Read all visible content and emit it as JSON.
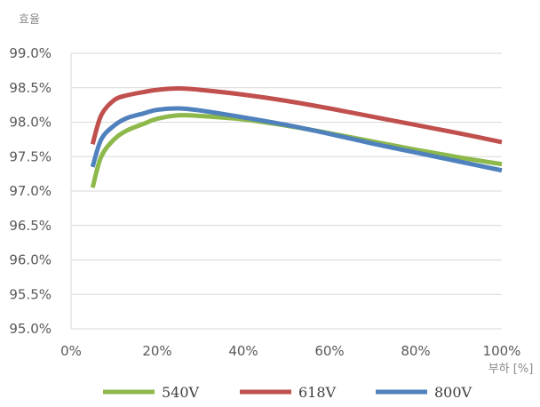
{
  "chart_data": {
    "type": "line",
    "ylabel": "효율",
    "xlabel": "부하 [%]",
    "xlim": [
      0,
      100
    ],
    "ylim": [
      95.0,
      99.0
    ],
    "x_ticks": [
      "0%",
      "20%",
      "40%",
      "60%",
      "80%",
      "100%"
    ],
    "y_ticks": [
      "95.0%",
      "95.5%",
      "96.0%",
      "96.5%",
      "97.0%",
      "97.5%",
      "98.0%",
      "98.5%",
      "99.0%"
    ],
    "grid": "horizontal",
    "legend_position": "bottom",
    "series": [
      {
        "name": "540V",
        "color": "#8db84a",
        "x": [
          5,
          7,
          10,
          13,
          17,
          20,
          25,
          30,
          40,
          50,
          60,
          70,
          80,
          90,
          100
        ],
        "y": [
          97.05,
          97.5,
          97.75,
          97.88,
          97.98,
          98.05,
          98.1,
          98.09,
          98.04,
          97.95,
          97.84,
          97.72,
          97.6,
          97.49,
          97.39
        ]
      },
      {
        "name": "618V",
        "color": "#c0504d",
        "x": [
          5,
          7,
          10,
          13,
          17,
          20,
          25,
          30,
          40,
          50,
          60,
          70,
          80,
          90,
          100
        ],
        "y": [
          97.68,
          98.1,
          98.32,
          98.39,
          98.44,
          98.47,
          98.49,
          98.47,
          98.4,
          98.31,
          98.2,
          98.08,
          97.96,
          97.84,
          97.71
        ]
      },
      {
        "name": "800V",
        "color": "#4f81bd",
        "x": [
          5,
          7,
          10,
          13,
          17,
          20,
          25,
          30,
          40,
          50,
          60,
          70,
          80,
          90,
          100
        ],
        "y": [
          97.35,
          97.75,
          97.95,
          98.06,
          98.13,
          98.18,
          98.2,
          98.17,
          98.07,
          97.96,
          97.83,
          97.69,
          97.56,
          97.43,
          97.3
        ]
      }
    ]
  }
}
